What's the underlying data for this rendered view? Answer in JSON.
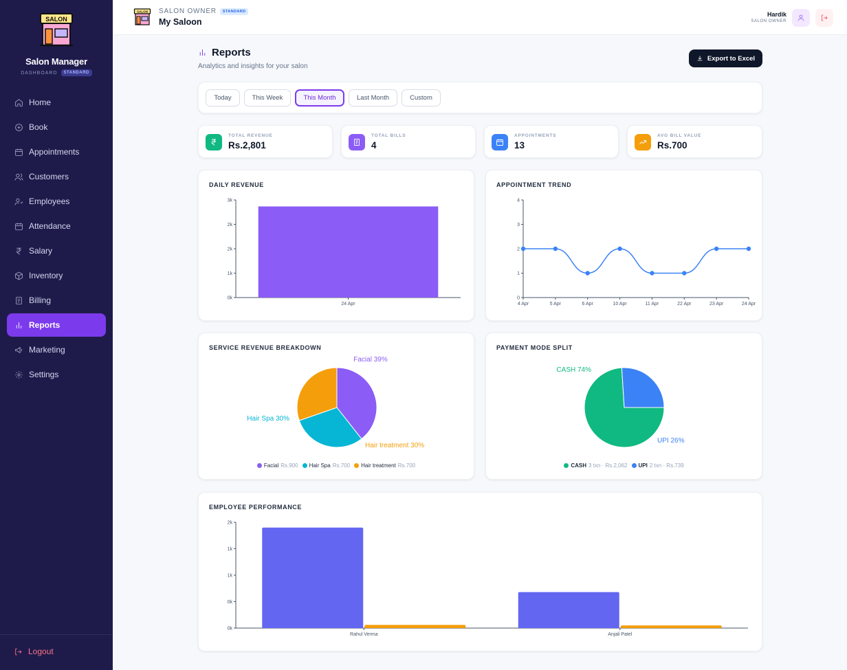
{
  "sidebar": {
    "brand": "Salon Manager",
    "logo_text": "SALON",
    "sub": "DASHBOARD",
    "badge": "STANDARD",
    "items": [
      {
        "label": "Home",
        "icon": "home-icon"
      },
      {
        "label": "Book",
        "icon": "plus-circle-icon"
      },
      {
        "label": "Appointments",
        "icon": "calendar-icon"
      },
      {
        "label": "Customers",
        "icon": "users-icon"
      },
      {
        "label": "Employees",
        "icon": "employee-icon"
      },
      {
        "label": "Attendance",
        "icon": "calendar-check-icon"
      },
      {
        "label": "Salary",
        "icon": "rupee-icon"
      },
      {
        "label": "Inventory",
        "icon": "box-icon"
      },
      {
        "label": "Billing",
        "icon": "receipt-icon"
      },
      {
        "label": "Reports",
        "icon": "bar-chart-icon",
        "active": true
      },
      {
        "label": "Marketing",
        "icon": "megaphone-icon"
      },
      {
        "label": "Settings",
        "icon": "gear-icon"
      }
    ],
    "logout": "Logout"
  },
  "topbar": {
    "logo_text": "SALON",
    "role": "SALON OWNER",
    "badge": "STANDARD",
    "shop": "My Saloon",
    "user": "Hardik",
    "user_role": "SALON OWNER"
  },
  "page": {
    "title": "Reports",
    "subtitle": "Analytics and insights for your salon",
    "export": "Export to Excel"
  },
  "filters": [
    "Today",
    "This Week",
    "This Month",
    "Last Month",
    "Custom"
  ],
  "active_filter": "This Month",
  "stats": [
    {
      "label": "TOTAL REVENUE",
      "value": "Rs.2,801",
      "color": "#10b981",
      "icon": "rupee-icon"
    },
    {
      "label": "TOTAL BILLS",
      "value": "4",
      "color": "#8b5cf6",
      "icon": "receipt-icon"
    },
    {
      "label": "APPOINTMENTS",
      "value": "13",
      "color": "#3b82f6",
      "icon": "calendar-icon"
    },
    {
      "label": "AVG BILL VALUE",
      "value": "Rs.700",
      "color": "#f59e0b",
      "icon": "trending-up-icon"
    }
  ],
  "chart_data": [
    {
      "type": "bar",
      "title": "DAILY REVENUE",
      "categories": [
        "24 Apr"
      ],
      "values": [
        2801
      ],
      "y_ticks": [
        "0k",
        "1k",
        "2k",
        "2k",
        "3k"
      ],
      "ylim": [
        0,
        3000
      ],
      "color": "#8b5cf6"
    },
    {
      "type": "line",
      "title": "APPOINTMENT TREND",
      "categories": [
        "4 Apr",
        "5 Apr",
        "6 Apr",
        "10 Apr",
        "11 Apr",
        "22 Apr",
        "23 Apr",
        "24 Apr"
      ],
      "values": [
        2,
        2,
        1,
        2,
        1,
        1,
        2,
        2
      ],
      "y_ticks": [
        "0",
        "1",
        "2",
        "3",
        "4"
      ],
      "ylim": [
        0,
        4
      ],
      "color": "#3b82f6"
    },
    {
      "type": "pie",
      "title": "SERVICE REVENUE BREAKDOWN",
      "slices": [
        {
          "name": "Facial",
          "label": "Facial 39%",
          "percent": 39,
          "value": 900,
          "amount": "Rs.900",
          "color": "#8b5cf6"
        },
        {
          "name": "Hair Spa",
          "label": "Hair Spa 30%",
          "percent": 30,
          "value": 700,
          "amount": "Rs.700",
          "color": "#06b6d4"
        },
        {
          "name": "Hair treatment",
          "label": "Hair treatment 30%",
          "percent": 30,
          "value": 700,
          "amount": "Rs.700",
          "color": "#f59e0b"
        }
      ]
    },
    {
      "type": "pie",
      "title": "PAYMENT MODE SPLIT",
      "slices": [
        {
          "name": "CASH",
          "label": "CASH 74%",
          "percent": 74,
          "value": 2062,
          "detail": "3 txn · Rs.2,062",
          "color": "#10b981"
        },
        {
          "name": "UPI",
          "label": "UPI 26%",
          "percent": 26,
          "value": 739,
          "detail": "2 txn · Rs.739",
          "color": "#3b82f6"
        }
      ]
    },
    {
      "type": "bar",
      "title": "EMPLOYEE PERFORMANCE",
      "categories": [
        "Rahul Verma",
        "Anjali Patel"
      ],
      "series": [
        {
          "values": [
            1900,
            680
          ],
          "color": "#6366f1"
        },
        {
          "values": [
            60,
            50
          ],
          "color": "#f59e0b"
        }
      ],
      "y_ticks": [
        "0k",
        "0k",
        "1k",
        "1k",
        "2k"
      ],
      "ylim": [
        0,
        2000
      ]
    }
  ]
}
